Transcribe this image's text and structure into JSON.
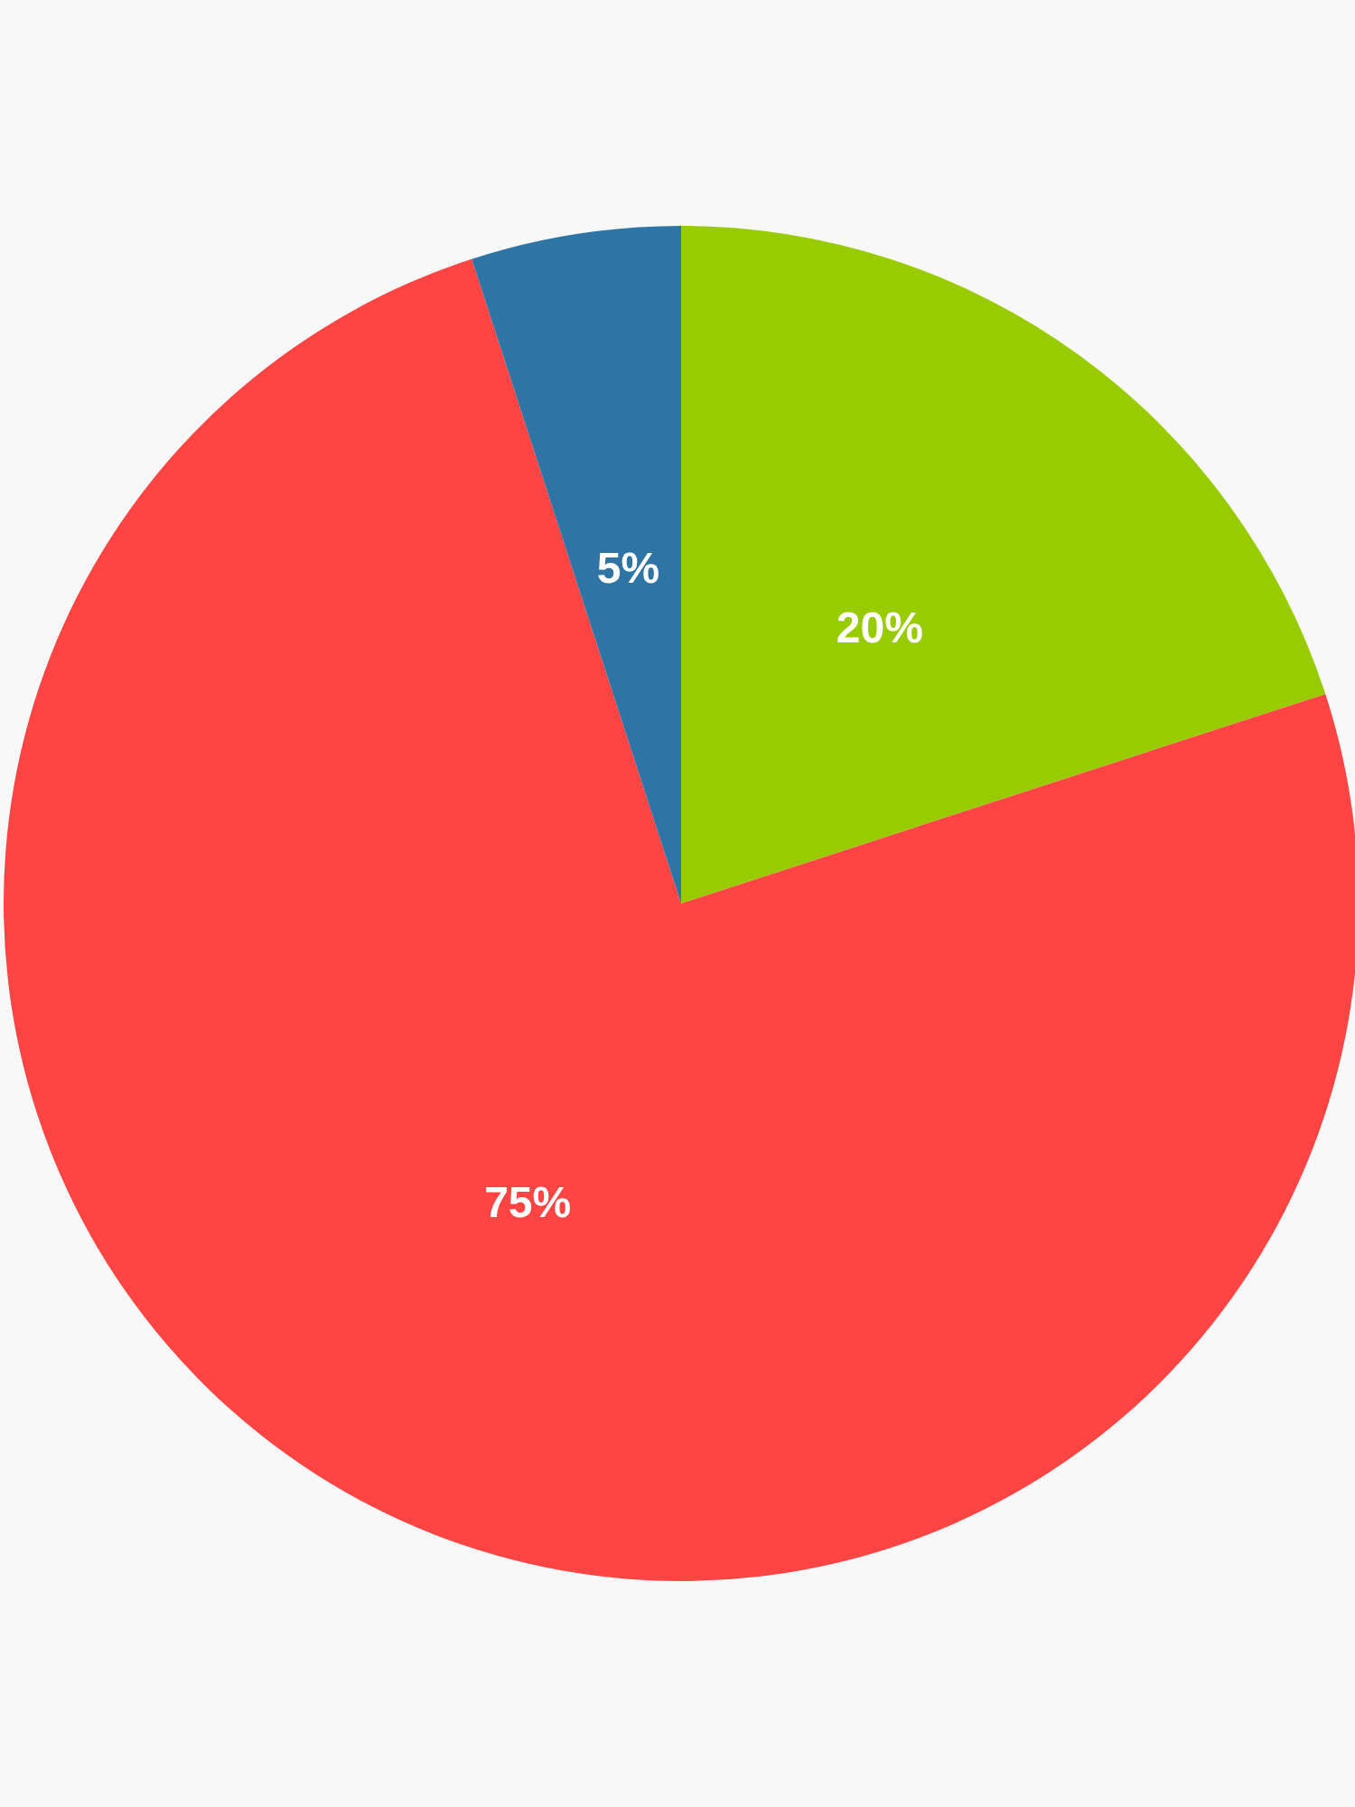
{
  "chart_data": {
    "type": "pie",
    "categories": [
      null,
      null,
      null
    ],
    "values": [
      20,
      75,
      5
    ],
    "colors": [
      "#99cc00",
      "#ff4444",
      "#2e75a6"
    ],
    "value_labels": [
      "20%",
      "75%",
      "5%"
    ]
  }
}
